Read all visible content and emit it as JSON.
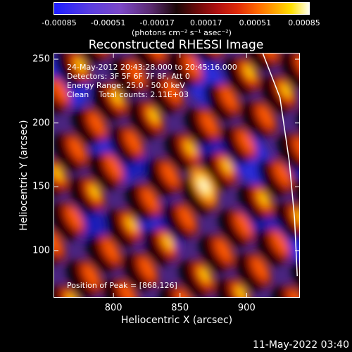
{
  "chart_data": {
    "type": "heatmap",
    "title": "Reconstructed RHESSI Image",
    "xlabel": "Heliocentric X (arcsec)",
    "ylabel": "Heliocentric Y (arcsec)",
    "xlim": [
      755,
      940
    ],
    "ylim": [
      63,
      255
    ],
    "x_ticks": [
      800,
      850,
      900
    ],
    "y_ticks": [
      100,
      150,
      200,
      250
    ],
    "colorbar": {
      "ticks": [
        "-0.00085",
        "-0.00051",
        "-0.00017",
        "0.00017",
        "0.00051",
        "0.00085"
      ],
      "range": [
        -0.00085,
        0.00085
      ],
      "unit_label": "(photons cm⁻² s⁻¹ asec⁻²)",
      "colormap": "blue-purple-black-red-yellow-white"
    },
    "peak": {
      "x": 868,
      "y": 126
    },
    "annotations": [
      "24-May-2012 20:43:28.000 to 20:45:16.000",
      "Detectors: 3F 5F 6F 7F 8F, Att 0",
      "Energy Range: 25.0 - 50.0 keV",
      "Clean    Total counts: 2.11E+03",
      "Position of Peak = [868,126]"
    ],
    "limb_line": [
      [
        912,
        255
      ],
      [
        925,
        220
      ],
      [
        932,
        170
      ],
      [
        936,
        125
      ],
      [
        938,
        80
      ]
    ]
  },
  "timestamp": "11-May-2022 03:40"
}
